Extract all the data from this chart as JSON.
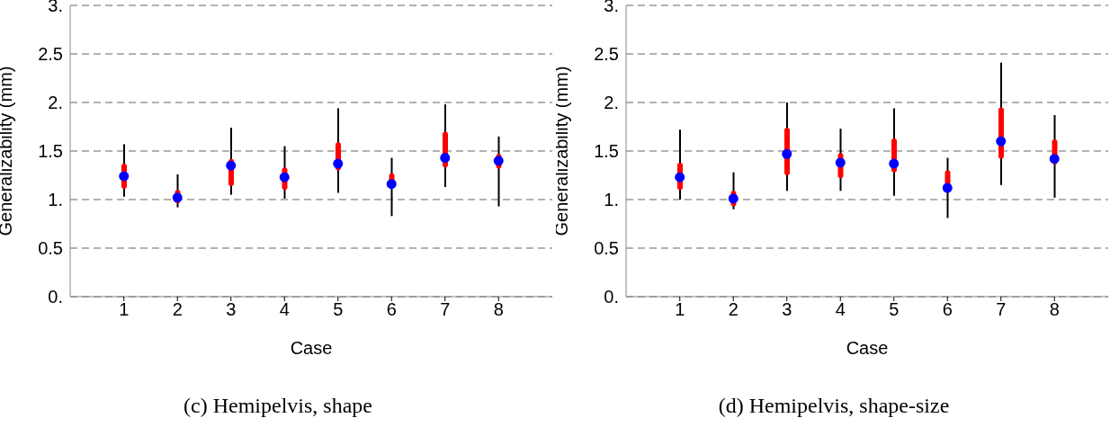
{
  "chart_data": [
    {
      "type": "box",
      "title": "(c) Hemipelvis, shape",
      "xlabel": "Case",
      "ylabel": "Generalizability (mm)",
      "categories": [
        "1",
        "2",
        "3",
        "4",
        "5",
        "6",
        "7",
        "8"
      ],
      "ylim": [
        0,
        3
      ],
      "yticks": [
        {
          "value": 0,
          "label": "0."
        },
        {
          "value": 0.5,
          "label": "0.5"
        },
        {
          "value": 1,
          "label": "1."
        },
        {
          "value": 1.5,
          "label": "1.5"
        },
        {
          "value": 2,
          "label": "2."
        },
        {
          "value": 2.5,
          "label": "2.5"
        },
        {
          "value": 3,
          "label": "3."
        }
      ],
      "grid": "y",
      "series": [
        {
          "color": "#ff0000",
          "boxes": [
            {
              "low": 1.03,
              "q1": 1.11,
              "median": 1.24,
              "q3": 1.37,
              "high": 1.57
            },
            {
              "low": 0.92,
              "q1": 0.96,
              "median": 1.02,
              "q3": 1.1,
              "high": 1.26
            },
            {
              "low": 1.05,
              "q1": 1.14,
              "median": 1.35,
              "q3": 1.42,
              "high": 1.74
            },
            {
              "low": 1.01,
              "q1": 1.1,
              "median": 1.23,
              "q3": 1.33,
              "high": 1.55
            },
            {
              "low": 1.07,
              "q1": 1.3,
              "median": 1.37,
              "q3": 1.59,
              "high": 1.94
            },
            {
              "low": 0.83,
              "q1": 1.12,
              "median": 1.16,
              "q3": 1.27,
              "high": 1.43
            },
            {
              "low": 1.13,
              "q1": 1.33,
              "median": 1.43,
              "q3": 1.7,
              "high": 1.98
            },
            {
              "low": 0.93,
              "q1": 1.32,
              "median": 1.4,
              "q3": 1.47,
              "high": 1.65
            }
          ]
        }
      ]
    },
    {
      "type": "box",
      "title": "(d) Hemipelvis, shape-size",
      "xlabel": "Case",
      "ylabel": "Generalizability (mm)",
      "categories": [
        "1",
        "2",
        "3",
        "4",
        "5",
        "6",
        "7",
        "8"
      ],
      "ylim": [
        0,
        3
      ],
      "yticks": [
        {
          "value": 0,
          "label": "0."
        },
        {
          "value": 0.5,
          "label": "0.5"
        },
        {
          "value": 1,
          "label": "1."
        },
        {
          "value": 1.5,
          "label": "1.5"
        },
        {
          "value": 2,
          "label": "2."
        },
        {
          "value": 2.5,
          "label": "2.5"
        },
        {
          "value": 3,
          "label": "3."
        }
      ],
      "grid": "y",
      "series": [
        {
          "color": "#ff0000",
          "boxes": [
            {
              "low": 1.0,
              "q1": 1.1,
              "median": 1.23,
              "q3": 1.38,
              "high": 1.72
            },
            {
              "low": 0.9,
              "q1": 0.93,
              "median": 1.01,
              "q3": 1.09,
              "high": 1.28
            },
            {
              "low": 1.09,
              "q1": 1.25,
              "median": 1.47,
              "q3": 1.74,
              "high": 2.0
            },
            {
              "low": 1.09,
              "q1": 1.22,
              "median": 1.38,
              "q3": 1.48,
              "high": 1.73
            },
            {
              "low": 1.04,
              "q1": 1.28,
              "median": 1.37,
              "q3": 1.63,
              "high": 1.94
            },
            {
              "low": 0.81,
              "q1": 1.1,
              "median": 1.12,
              "q3": 1.3,
              "high": 1.43
            },
            {
              "low": 1.15,
              "q1": 1.42,
              "median": 1.6,
              "q3": 1.95,
              "high": 2.41
            },
            {
              "low": 1.02,
              "q1": 1.36,
              "median": 1.42,
              "q3": 1.62,
              "high": 1.87
            }
          ]
        }
      ]
    }
  ]
}
